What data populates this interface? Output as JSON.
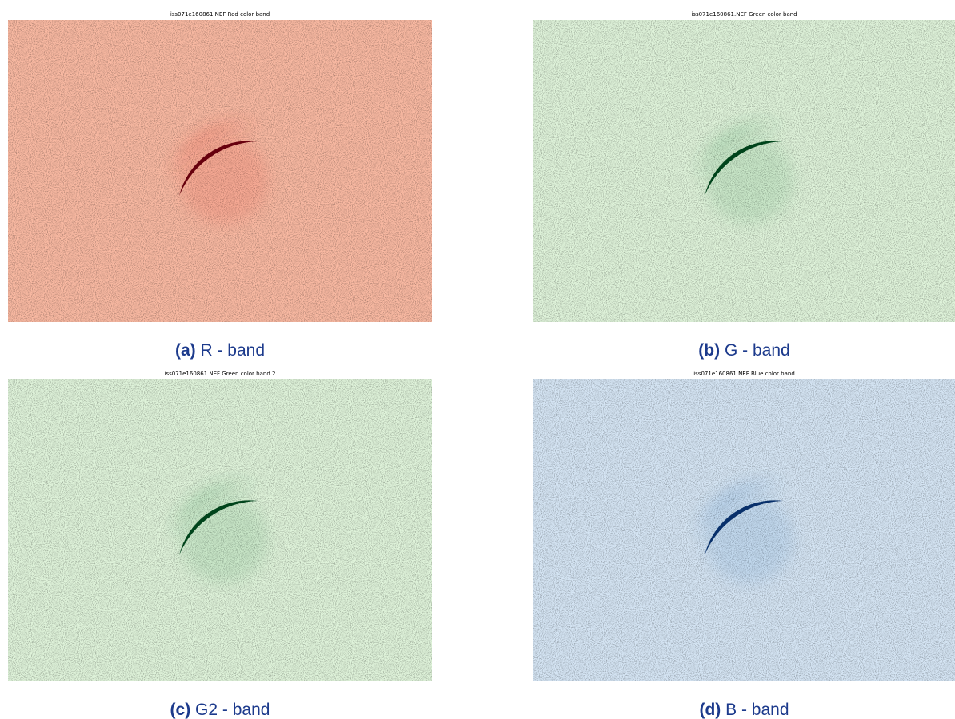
{
  "figure": {
    "panels": [
      {
        "title": "iss071e160861.NEF Red color band",
        "label": "(a)",
        "caption": "R - band"
      },
      {
        "title": "iss071e160861.NEF Green color band",
        "label": "(b)",
        "caption": "G - band"
      },
      {
        "title": "iss071e160861.NEF Green color band 2",
        "label": "(c)",
        "caption": "G2 - band"
      },
      {
        "title": "iss071e160861.NEF Blue color band",
        "label": "(d)",
        "caption": "B - band"
      }
    ]
  }
}
